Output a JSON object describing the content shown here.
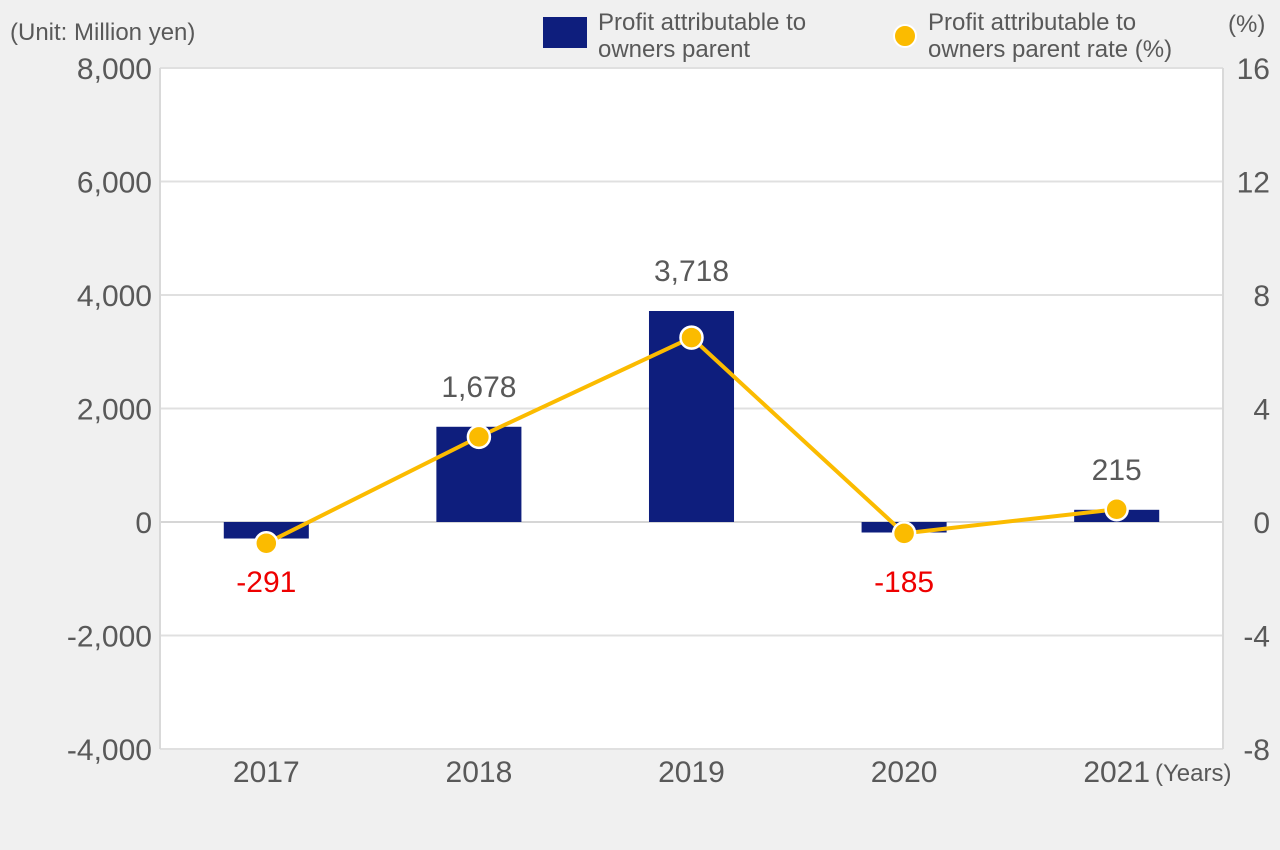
{
  "chart_data": {
    "type": "bar+line",
    "unit_label": "(Unit: Million yen)",
    "right_unit_label": "(%)",
    "x_unit_label": "(Years)",
    "categories": [
      "2017",
      "2018",
      "2019",
      "2020",
      "2021"
    ],
    "series": [
      {
        "name": "Profit attributable to owners parent",
        "type": "bar",
        "axis": "left",
        "color": "#0e1e7d",
        "values": [
          -291,
          1678,
          3718,
          -185,
          215
        ],
        "data_labels": [
          "-291",
          "1,678",
          "3,718",
          "-185",
          "215"
        ]
      },
      {
        "name": "Profit attributable to owners parent rate (%)",
        "type": "line",
        "axis": "right",
        "color": "#fbbb00",
        "values": [
          -0.75,
          3.0,
          6.5,
          -0.4,
          0.45
        ]
      }
    ],
    "legend": [
      {
        "label_line1": "Profit attributable to",
        "label_line2": "owners parent",
        "marker": "square",
        "color": "#0e1e7d"
      },
      {
        "label_line1": "Profit attributable to",
        "label_line2": "owners parent rate (%)",
        "marker": "circle",
        "color": "#fbbb00"
      }
    ],
    "y_left": {
      "min": -4000,
      "max": 8000,
      "ticks": [
        -4000,
        -2000,
        0,
        2000,
        4000,
        6000,
        8000
      ],
      "tick_labels": [
        "-4,000",
        "-2,000",
        "0",
        "2,000",
        "4,000",
        "6,000",
        "8,000"
      ]
    },
    "y_right": {
      "min": -8,
      "max": 16,
      "ticks": [
        -8,
        -4,
        0,
        4,
        8,
        12,
        16
      ],
      "tick_labels": [
        "-8",
        "-4",
        "0",
        "4",
        "8",
        "12",
        "16"
      ]
    },
    "negative_label_color": "#ee0000",
    "label_color": "#595959",
    "grid": true
  }
}
